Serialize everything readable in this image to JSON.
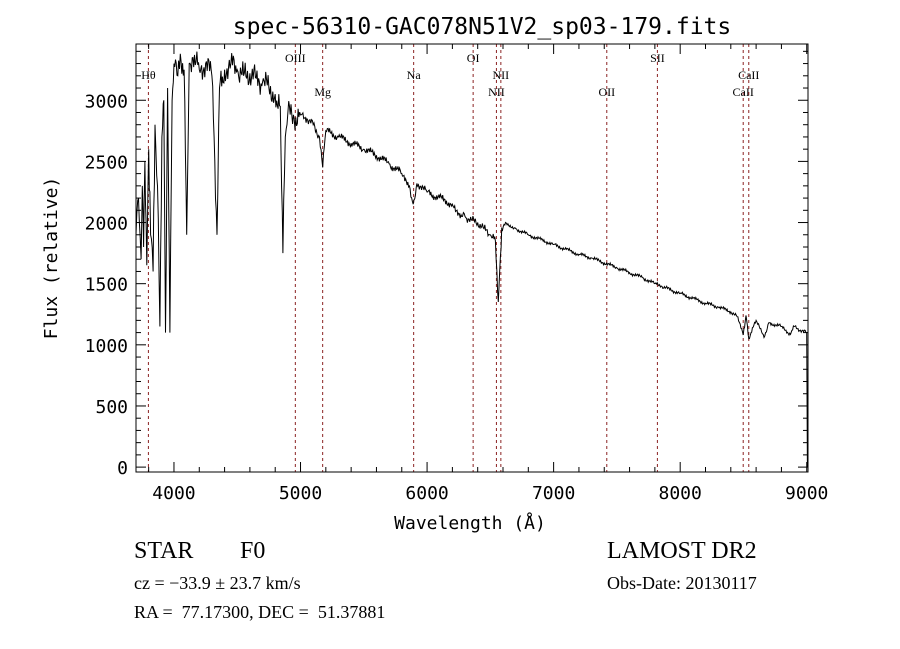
{
  "chart_data": {
    "type": "line",
    "title": "spec-56310-GAC078N51V2_sp03-179.fits",
    "xlabel": "Wavelength (Å)",
    "ylabel": "Flux (relative)",
    "xlim": [
      3700,
      9010
    ],
    "ylim": [
      -40,
      3460
    ],
    "xticks": [
      4000,
      5000,
      6000,
      7000,
      8000,
      9000
    ],
    "yticks": [
      0,
      500,
      1000,
      1500,
      2000,
      2500,
      3000
    ],
    "grid": false,
    "series": [
      {
        "name": "spectrum",
        "x": [
          3700,
          3720,
          3740,
          3750,
          3760,
          3770,
          3785,
          3800,
          3815,
          3835,
          3850,
          3870,
          3889,
          3905,
          3920,
          3933,
          3950,
          3968,
          3985,
          4000,
          4030,
          4050,
          4080,
          4101,
          4120,
          4150,
          4200,
          4250,
          4300,
          4340,
          4360,
          4400,
          4450,
          4500,
          4550,
          4600,
          4650,
          4700,
          4750,
          4800,
          4840,
          4861,
          4880,
          4900,
          4950,
          5000,
          5050,
          5100,
          5150,
          5175,
          5200,
          5300,
          5400,
          5500,
          5600,
          5700,
          5800,
          5860,
          5890,
          5920,
          6000,
          6100,
          6200,
          6280,
          6300,
          6350,
          6400,
          6450,
          6500,
          6540,
          6563,
          6590,
          6620,
          6700,
          6800,
          6900,
          7000,
          7100,
          7200,
          7300,
          7400,
          7500,
          7600,
          7700,
          7800,
          7850,
          7900,
          8000,
          8100,
          8200,
          8300,
          8400,
          8450,
          8498,
          8520,
          8542,
          8600,
          8662,
          8700,
          8800,
          8860,
          8900,
          8950,
          9000,
          9005
        ],
        "y": [
          1900,
          2200,
          1700,
          2300,
          1800,
          2500,
          1650,
          2600,
          1900,
          1600,
          2800,
          2300,
          1150,
          2700,
          3000,
          1100,
          3100,
          1100,
          3000,
          3300,
          3200,
          3380,
          3250,
          1900,
          3300,
          3350,
          3250,
          3300,
          3200,
          1900,
          3100,
          3250,
          3300,
          3250,
          3200,
          3220,
          3180,
          3150,
          3100,
          3050,
          2950,
          1750,
          2700,
          2900,
          2850,
          2880,
          2850,
          2800,
          2700,
          2450,
          2750,
          2700,
          2650,
          2600,
          2550,
          2480,
          2400,
          2300,
          2150,
          2320,
          2250,
          2200,
          2150,
          2050,
          2050,
          2020,
          2000,
          1950,
          1900,
          1850,
          1350,
          1950,
          2000,
          1950,
          1900,
          1860,
          1820,
          1780,
          1740,
          1710,
          1670,
          1630,
          1590,
          1550,
          1500,
          1480,
          1460,
          1420,
          1380,
          1340,
          1310,
          1270,
          1230,
          1080,
          1240,
          1050,
          1200,
          1060,
          1180,
          1150,
          1080,
          1150,
          1120,
          1100,
          0
        ]
      }
    ],
    "lines": [
      {
        "label": "Hθ",
        "wavelength": 3798,
        "row": 2
      },
      {
        "label": "OIII",
        "wavelength": 4959,
        "row": 1
      },
      {
        "label": "Mg",
        "wavelength": 5175,
        "row": 3
      },
      {
        "label": "Na",
        "wavelength": 5894,
        "row": 2
      },
      {
        "label": "OI",
        "wavelength": 6364,
        "row": 1
      },
      {
        "label": "NII",
        "wavelength": 6548,
        "row": 3
      },
      {
        "label": "NII",
        "wavelength": 6583,
        "row": 2
      },
      {
        "label": "OII",
        "wavelength": 7420,
        "row": 3
      },
      {
        "label": "SII",
        "wavelength": 7820,
        "row": 1
      },
      {
        "label": "CaII",
        "wavelength": 8498,
        "row": 3
      },
      {
        "label": "CaII",
        "wavelength": 8542,
        "row": 2
      }
    ],
    "line_color": "#8b2222"
  },
  "info": {
    "class": "STAR",
    "subclass": "F0",
    "survey": "LAMOST DR2",
    "cz": "cz = −33.9 ± 23.7 km/s",
    "obs_date": "Obs-Date: 20130117",
    "coords": "RA =  77.17300, DEC =  51.37881"
  }
}
